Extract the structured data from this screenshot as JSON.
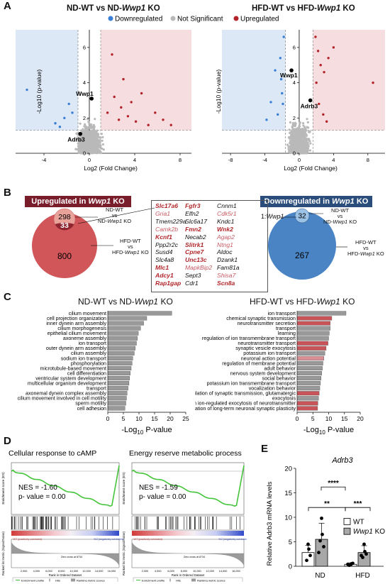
{
  "panels": {
    "A": "A",
    "B": "B",
    "C": "C",
    "D": "D",
    "E": "E"
  },
  "panelA": {
    "left": {
      "title_pre": "ND-WT vs ND-",
      "title_gene": "Wwp1",
      "title_post": " KO",
      "xlabel": "Log2 (Fold Change)",
      "ylabel": "-Log10 (p-value)",
      "xticks": [
        "-4",
        "0",
        "4",
        "8"
      ],
      "yticks": [
        "0",
        "2",
        "4",
        "6"
      ],
      "annotations": [
        "Wwp1",
        "Adrb3"
      ]
    },
    "right": {
      "title_pre": "HFD-WT vs HFD-",
      "title_gene": "Wwp1",
      "title_post": " KO",
      "xlabel": "Log2 (Fold Change)",
      "ylabel": "-Log10 (p-value)",
      "xticks": [
        "-8",
        "-4",
        "0",
        "4",
        "8"
      ],
      "yticks": [
        "0",
        "2",
        "4",
        "6"
      ],
      "annotations": [
        "Wwp1",
        "Adrb3"
      ]
    },
    "legend": {
      "down": "Downregulated",
      "ns": "Not Significant",
      "up": "Upregulated"
    },
    "colors": {
      "down": "#3a7fd6",
      "ns": "#b9b9b9",
      "up": "#b3232a",
      "label_point": "#000000"
    }
  },
  "panelB": {
    "up_title_pre": "Upregulated in ",
    "up_title_gene": "Wwp1",
    "up_title_post": " KO",
    "down_title_pre": "Downregulated in ",
    "down_title_gene": "Wwp1",
    "down_title_post": " KO",
    "up": {
      "small": "298",
      "overlap": "33",
      "large": "800"
    },
    "down": {
      "small": "32",
      "large": "267",
      "pointer_pre": "1:",
      "pointer_gene": "Wwp1"
    },
    "set_labels": {
      "nd_a": "ND-WT",
      "nd_vs": "vs",
      "nd_b_pre": "ND-",
      "nd_b_gene": "Wwp1",
      "nd_b_post": " KO",
      "hfd_a": "HFD-WT",
      "hfd_vs": "vs",
      "hfd_b_pre": "HFD-",
      "hfd_b_gene": "Wwp1",
      "hfd_b_post": " KO"
    },
    "genes": {
      "col1": [
        "Slc17a6",
        "Gria1",
        "Tmem229a",
        "Camk2b",
        "Kcnf1",
        "Ppp2r2c",
        "Susd4",
        "Slc4a8",
        "Mlc1",
        "Adcy1",
        "Rap1gap"
      ],
      "col2": [
        "Fgfr3",
        "Elfn2",
        "Slc6a17",
        "Fmn2",
        "Necab2",
        "Slitrk1",
        "Cpne7",
        "Unc13c",
        "MapkBip2",
        "Sept3",
        "Cdr1"
      ],
      "col3": [
        "Cnnm1",
        "Cdk5r1",
        "Kndc1",
        "Wnk2",
        "Agap2",
        "Ntng1",
        "Aldoc",
        "Dzank1",
        "Fam81a",
        "Shisa7",
        "Scn8a"
      ]
    },
    "colors": {
      "up_title_bg": "#7a1d2a",
      "down_title_bg": "#2a4d7c",
      "venn_red": "#d0565a",
      "venn_red_small": "#e8a29a",
      "venn_overlap": "#8f2530",
      "venn_blue": "#4a84c4",
      "venn_blue_small": "#9cc3e6"
    }
  },
  "panelC": {
    "left": {
      "title_pre": "ND-WT vs ND-",
      "title_gene": "Wwp1",
      "title_post": " KO",
      "xlabel_pre": "-Log",
      "xlabel_sub": "10",
      "xlabel_post": " P-value",
      "xticks": [
        "0",
        "5",
        "10",
        "15",
        "20",
        "25"
      ]
    },
    "right": {
      "title_pre": "HFD-WT vs HFD-",
      "title_gene": "Wwp1",
      "title_post": " KO",
      "xlabel_pre": "-Log",
      "xlabel_sub": "10",
      "xlabel_post": " P-value",
      "xticks": [
        "0",
        "5",
        "10",
        "15",
        "20"
      ]
    }
  },
  "chart_data": [
    {
      "type": "bar",
      "orientation": "horizontal",
      "title": "ND-WT vs ND-Wwp1 KO",
      "xlabel": "-Log10 P-value",
      "xlim": [
        0,
        25
      ],
      "categories": [
        "cilium movement",
        "cell projection organization",
        "inner dynein arm assembly",
        "cilium morphogenesis",
        "epithelial cilium movement",
        "axoneme assembly",
        "ion transport",
        "outer dynein arm assembly",
        "cilium assembly",
        "sodium ion transport",
        "phosphorylation",
        "microtubule-based movement",
        "cell differentiation",
        "ventricular system development",
        "multicellular organism development",
        "transport",
        "axonemal dynein complex assembly",
        "cilium movement involved in cell motility",
        "sperm motility",
        "cell adhesion"
      ],
      "values": [
        20.5,
        12.5,
        11.5,
        10.5,
        9.8,
        9.5,
        9.2,
        8.8,
        8.5,
        8.0,
        7.8,
        7.5,
        7.2,
        7.0,
        6.8,
        6.5,
        6.2,
        6.0,
        5.8,
        5.5
      ],
      "bar_colors": [
        "#999999",
        "#999999",
        "#999999",
        "#999999",
        "#999999",
        "#999999",
        "#999999",
        "#999999",
        "#999999",
        "#999999",
        "#999999",
        "#999999",
        "#999999",
        "#999999",
        "#999999",
        "#999999",
        "#999999",
        "#999999",
        "#999999",
        "#999999"
      ]
    },
    {
      "type": "bar",
      "orientation": "horizontal",
      "title": "HFD-WT vs HFD-Wwp1 KO",
      "xlabel": "-Log10 P-value",
      "xlim": [
        0,
        20
      ],
      "categories": [
        "ion transport",
        "chemical synaptic transmission",
        "neurotransmitter secretion",
        "transport",
        "learning",
        "regulation of ion transmembrane transport",
        "neurotransmitter transport",
        "synaptic vesicle exocytosis",
        "potassium ion transport",
        "neuronal action potential",
        "regulation of membrane potential",
        "adult behavior",
        "nervous system development",
        "social behavior",
        "potassium ion transmembrane transport",
        "vocalization behavior",
        "regulation of synaptic transmission, glutamatergic",
        "exocytosis",
        "calcium ion-regulated exocytosis of neurotransmitter",
        "regulation of long-term neuronal synaptic plasticity"
      ],
      "values": [
        15.5,
        11.0,
        10.5,
        10.5,
        10.2,
        10.0,
        9.8,
        9.2,
        8.8,
        8.5,
        8.2,
        8.0,
        7.8,
        7.6,
        7.4,
        7.2,
        7.0,
        6.8,
        6.6,
        6.5
      ],
      "bar_colors": [
        "#999999",
        "#c8545a",
        "#c8545a",
        "#999999",
        "#999999",
        "#999999",
        "#c8545a",
        "#c8545a",
        "#999999",
        "#d98f94",
        "#999999",
        "#999999",
        "#999999",
        "#999999",
        "#999999",
        "#999999",
        "#c8545a",
        "#999999",
        "#c8545a",
        "#c8545a"
      ]
    },
    {
      "type": "bar",
      "title": "Adrb3",
      "ylabel": "Relative Adrb3 mRNA levels",
      "categories": [
        "ND",
        "HFD"
      ],
      "ylim": [
        0,
        20
      ],
      "yticks": [
        "0",
        "5",
        "10",
        "15",
        "20"
      ],
      "series": [
        {
          "name": "WT",
          "values": [
            2.8,
            0.4
          ],
          "errors": [
            1.5,
            0.3
          ],
          "points": [
            [
              4.5,
              3.5,
              1.2,
              2.2
            ],
            [
              0.3,
              0.5,
              0.2,
              0.6,
              0.4
            ]
          ],
          "color": "#ffffff"
        },
        {
          "name": "Wwp1 KO",
          "values": [
            5.5,
            2.8
          ],
          "errors": [
            3.3,
            1.4
          ],
          "points": [
            [
              9.8,
              6.5,
              5.2,
              4.0,
              2.8
            ],
            [
              4.5,
              3.0,
              1.8,
              2.5,
              2.2
            ]
          ],
          "color": "#a8a8a8"
        }
      ],
      "significance": [
        "**",
        "****",
        "***"
      ],
      "legend_wt": "WT",
      "legend_ko_gene": "Wwp1",
      "legend_ko_post": " KO"
    }
  ],
  "panelD": {
    "left": {
      "title": "Cellular response to cAMP",
      "nes": "NES = -1.60",
      "pval": "p- value = 0.00",
      "ylabel": "Enrichment score (ES)"
    },
    "right": {
      "title": "Energy reserve metabolic process",
      "nes": "NES = -1.59",
      "pval": "p- value = 0.00",
      "ylabel": "Enrichment score (ES)"
    },
    "bottom_ylabel": "Ranked list metric (Signal2Noise)",
    "xlabel": "Rank in Ordered Dataset",
    "xticks": [
      "2,000",
      "4,000",
      "6,000",
      "8,000",
      "10,000",
      "12,000",
      "14,000",
      "16,000"
    ],
    "pos_label": "'WT (positively correlated)",
    "neg_label": "'KO (negatively correlated)",
    "zero_cross": "Zero cross at 8734",
    "legend": [
      "Enrichment profile",
      "Hits",
      "Ranking metric scores"
    ],
    "colors": {
      "curve": "#44c43a",
      "hits": "#111111",
      "heat_red": "#d23a3a",
      "heat_blue": "#2f48c8",
      "metric": "#9a9a9a"
    }
  },
  "panelE": {
    "title": "Adrb3",
    "ylabel": "Relative Adrb3 mRNA levels"
  }
}
